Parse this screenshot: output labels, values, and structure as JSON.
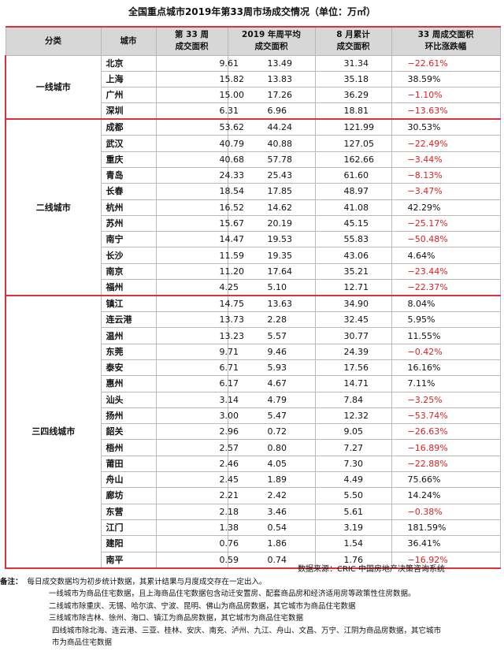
{
  "title": "全国重点城市2019年第33周市场成交情况（单位：万㎡）",
  "headers": {
    "category": "分类",
    "city": "城市",
    "week33": [
      "第 33 周",
      "成交面积"
    ],
    "avg2019": [
      "2019 年周平均",
      "成交面积"
    ],
    "aug_total": [
      "8 月累计",
      "成交面积"
    ],
    "change": [
      "33 周成交面积",
      "环比涨跌幅"
    ]
  },
  "groups": [
    {
      "name": "一线城市",
      "rows": [
        {
          "city": "北京",
          "week": "9.61",
          "avg": "13.49",
          "aug": "31.34",
          "pct": "−22.61%",
          "neg": true
        },
        {
          "city": "上海",
          "week": "15.82",
          "avg": "13.83",
          "aug": "35.18",
          "pct": "38.59%",
          "neg": false
        },
        {
          "city": "广州",
          "week": "15.00",
          "avg": "17.26",
          "aug": "36.29",
          "pct": "−1.10%",
          "neg": true
        },
        {
          "city": "深圳",
          "week": "6.31",
          "avg": "6.96",
          "aug": "18.81",
          "pct": "−13.63%",
          "neg": true
        }
      ]
    },
    {
      "name": "二线城市",
      "rows": [
        {
          "city": "成都",
          "week": "53.62",
          "avg": "44.24",
          "aug": "121.99",
          "pct": "30.53%",
          "neg": false
        },
        {
          "city": "武汉",
          "week": "40.79",
          "avg": "40.88",
          "aug": "127.05",
          "pct": "−22.49%",
          "neg": true
        },
        {
          "city": "重庆",
          "week": "40.68",
          "avg": "57.78",
          "aug": "162.66",
          "pct": "−3.44%",
          "neg": true
        },
        {
          "city": "青岛",
          "week": "24.33",
          "avg": "25.43",
          "aug": "61.60",
          "pct": "−8.13%",
          "neg": true
        },
        {
          "city": "长春",
          "week": "18.54",
          "avg": "17.85",
          "aug": "48.97",
          "pct": "−3.47%",
          "neg": true
        },
        {
          "city": "杭州",
          "week": "16.52",
          "avg": "14.62",
          "aug": "41.08",
          "pct": "42.29%",
          "neg": false
        },
        {
          "city": "苏州",
          "week": "15.67",
          "avg": "20.19",
          "aug": "45.15",
          "pct": "−25.17%",
          "neg": true
        },
        {
          "city": "南宁",
          "week": "14.47",
          "avg": "19.53",
          "aug": "55.83",
          "pct": "−50.48%",
          "neg": true
        },
        {
          "city": "长沙",
          "week": "11.59",
          "avg": "19.35",
          "aug": "43.06",
          "pct": "4.64%",
          "neg": false
        },
        {
          "city": "南京",
          "week": "11.20",
          "avg": "17.64",
          "aug": "35.21",
          "pct": "−23.44%",
          "neg": true
        },
        {
          "city": "福州",
          "week": "4.25",
          "avg": "5.10",
          "aug": "12.71",
          "pct": "−22.37%",
          "neg": true
        }
      ]
    },
    {
      "name": "三四线城市",
      "rows": [
        {
          "city": "镇江",
          "week": "14.75",
          "avg": "13.63",
          "aug": "34.90",
          "pct": "8.04%",
          "neg": false
        },
        {
          "city": "连云港",
          "week": "13.73",
          "avg": "2.28",
          "aug": "32.45",
          "pct": "5.95%",
          "neg": false
        },
        {
          "city": "温州",
          "week": "13.23",
          "avg": "5.57",
          "aug": "30.77",
          "pct": "11.55%",
          "neg": false
        },
        {
          "city": "东莞",
          "week": "9.71",
          "avg": "9.46",
          "aug": "24.39",
          "pct": "−0.42%",
          "neg": true
        },
        {
          "city": "泰安",
          "week": "6.71",
          "avg": "5.93",
          "aug": "17.56",
          "pct": "16.16%",
          "neg": false
        },
        {
          "city": "惠州",
          "week": "6.17",
          "avg": "4.67",
          "aug": "14.71",
          "pct": "7.11%",
          "neg": false
        },
        {
          "city": "汕头",
          "week": "3.14",
          "avg": "4.79",
          "aug": "7.84",
          "pct": "−3.25%",
          "neg": true
        },
        {
          "city": "扬州",
          "week": "3.00",
          "avg": "5.47",
          "aug": "12.32",
          "pct": "−53.74%",
          "neg": true
        },
        {
          "city": "韶关",
          "week": "2.96",
          "avg": "0.72",
          "aug": "9.05",
          "pct": "−26.63%",
          "neg": true
        },
        {
          "city": "梧州",
          "week": "2.57",
          "avg": "0.80",
          "aug": "7.27",
          "pct": "−16.89%",
          "neg": true
        },
        {
          "city": "莆田",
          "week": "2.46",
          "avg": "4.05",
          "aug": "7.30",
          "pct": "−22.88%",
          "neg": true
        },
        {
          "city": "舟山",
          "week": "2.45",
          "avg": "1.89",
          "aug": "4.49",
          "pct": "75.66%",
          "neg": false
        },
        {
          "city": "廊坊",
          "week": "2.21",
          "avg": "2.42",
          "aug": "5.50",
          "pct": "14.24%",
          "neg": false
        },
        {
          "city": "东营",
          "week": "2.18",
          "avg": "3.46",
          "aug": "5.61",
          "pct": "−0.38%",
          "neg": true
        },
        {
          "city": "江门",
          "week": "1.38",
          "avg": "0.54",
          "aug": "3.19",
          "pct": "181.59%",
          "neg": false
        },
        {
          "city": "建阳",
          "week": "0.76",
          "avg": "1.86",
          "aug": "1.54",
          "pct": "36.41%",
          "neg": false
        },
        {
          "city": "南平",
          "week": "0.59",
          "avg": "0.74",
          "aug": "1.76",
          "pct": "−16.92%",
          "neg": true
        }
      ]
    }
  ],
  "source": "数据来源：CRIC 中国房地产决策咨询系统",
  "notes": {
    "label": "备注：",
    "lines": [
      "每日成交数据均为初步统计数据，其累计结果与月度成交存在一定出入。",
      "一线城市为商品住宅数据，且上海商品住宅数据包含动迁安置房、配套商品房和经济适用房等政策性住房数据。",
      "二线城市除重庆、无锡、哈尔滨、宁波、昆明、佛山为商品房数据，其它城市为商品住宅数据",
      "三线城市除吉林、徐州、海口、镇江为商品房数据，其它城市为商品住宅数据",
      "四线城市除北海、连云港、三亚、桂林、安庆、南充、泸州、九江、舟山、文昌、万宁、江阴为商品房数据，其它城市",
      "市为商品住宅数据"
    ]
  },
  "colors": {
    "negative": "#e02020",
    "accent": "#d9323b",
    "header_bg": "#d7d7d7"
  }
}
